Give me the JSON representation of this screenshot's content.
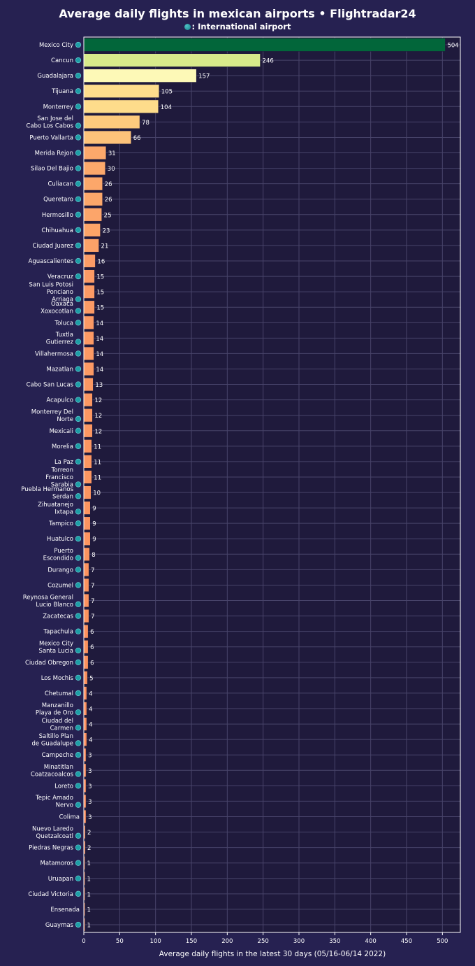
{
  "chart_data": {
    "type": "bar",
    "orientation": "horizontal",
    "title": "Average daily flights in mexican airports • Flightradar24",
    "legend": {
      "label": ": International airport",
      "marker": "globe-icon"
    },
    "xlabel": "Average daily flights in the latest 30 days (05/16-06/14 2022)",
    "xlim": [
      0,
      525
    ],
    "xticks": [
      0,
      50,
      100,
      150,
      200,
      250,
      300,
      350,
      400,
      450,
      500
    ],
    "grid": true,
    "colors": {
      "background": "#262151",
      "plot_background": "#1f1a3c",
      "grid": "#48446a",
      "label_color": "#ffffff",
      "international_marker": "#1e9ea6"
    },
    "bars": [
      {
        "label": "Mexico City",
        "value": 504,
        "international": true,
        "color": "#02663a"
      },
      {
        "label": "Cancun",
        "value": 246,
        "international": true,
        "color": "#d8ea8b"
      },
      {
        "label": "Guadalajara",
        "value": 157,
        "international": true,
        "color": "#fdf9b7"
      },
      {
        "label": "Tijuana",
        "value": 105,
        "international": true,
        "color": "#fedd8c"
      },
      {
        "label": "Monterrey",
        "value": 104,
        "international": true,
        "color": "#fedc8b"
      },
      {
        "label": "San Jose del Cabo Los Cabos",
        "value": 78,
        "international": true,
        "color": "#fdca7d"
      },
      {
        "label": "Puerto Vallarta",
        "value": 66,
        "international": true,
        "color": "#fdc27a"
      },
      {
        "label": "Merida Rejon",
        "value": 31,
        "international": true,
        "color": "#fca86b"
      },
      {
        "label": "Silao Del Bajio",
        "value": 30,
        "international": true,
        "color": "#fca86b"
      },
      {
        "label": "Culiacan",
        "value": 26,
        "international": true,
        "color": "#fca76a"
      },
      {
        "label": "Queretaro",
        "value": 26,
        "international": true,
        "color": "#fca76a"
      },
      {
        "label": "Hermosillo",
        "value": 25,
        "international": true,
        "color": "#fca56a"
      },
      {
        "label": "Chihuahua",
        "value": 23,
        "international": true,
        "color": "#fca468"
      },
      {
        "label": "Ciudad Juarez",
        "value": 21,
        "international": true,
        "color": "#fca268"
      },
      {
        "label": "Aguascalientes",
        "value": 16,
        "international": true,
        "color": "#fc9c66"
      },
      {
        "label": "Veracruz",
        "value": 15,
        "international": true,
        "color": "#fc9a65"
      },
      {
        "label": "San Luis Potosi Ponciano Arriaga",
        "value": 15,
        "international": true,
        "color": "#fc9a65"
      },
      {
        "label": "Oaxaca Xoxocotlan",
        "value": 15,
        "international": true,
        "color": "#fc9a65"
      },
      {
        "label": "Toluca",
        "value": 14,
        "international": true,
        "color": "#fc9964"
      },
      {
        "label": "Tuxtla Gutierrez",
        "value": 14,
        "international": true,
        "color": "#fc9964"
      },
      {
        "label": "Villahermosa",
        "value": 14,
        "international": true,
        "color": "#fc9964"
      },
      {
        "label": "Mazatlan",
        "value": 14,
        "international": true,
        "color": "#fc9964"
      },
      {
        "label": "Cabo San Lucas",
        "value": 13,
        "international": true,
        "color": "#fc9863"
      },
      {
        "label": "Acapulco",
        "value": 12,
        "international": true,
        "color": "#fc9762"
      },
      {
        "label": "Monterrey Del Norte",
        "value": 12,
        "international": true,
        "color": "#fc9762"
      },
      {
        "label": "Mexicali",
        "value": 12,
        "international": true,
        "color": "#fc9762"
      },
      {
        "label": "Morelia",
        "value": 11,
        "international": true,
        "color": "#fc9661"
      },
      {
        "label": "La Paz",
        "value": 11,
        "international": true,
        "color": "#fc9661"
      },
      {
        "label": "Torreon Francisco Sarabia",
        "value": 11,
        "international": true,
        "color": "#fc9661"
      },
      {
        "label": "Puebla Hermanos Serdan",
        "value": 10,
        "international": true,
        "color": "#fc9560"
      },
      {
        "label": "Zihuatanejo Ixtapa",
        "value": 9,
        "international": true,
        "color": "#fc9460"
      },
      {
        "label": "Tampico",
        "value": 9,
        "international": true,
        "color": "#fc9460"
      },
      {
        "label": "Huatulco",
        "value": 9,
        "international": true,
        "color": "#fc9460"
      },
      {
        "label": "Puerto Escondido",
        "value": 8,
        "international": true,
        "color": "#fc935f"
      },
      {
        "label": "Durango",
        "value": 7,
        "international": true,
        "color": "#fc925e"
      },
      {
        "label": "Cozumel",
        "value": 7,
        "international": true,
        "color": "#fc925e"
      },
      {
        "label": "Reynosa General Lucio Blanco",
        "value": 7,
        "international": true,
        "color": "#fc925e"
      },
      {
        "label": "Zacatecas",
        "value": 7,
        "international": true,
        "color": "#fc925e"
      },
      {
        "label": "Tapachula",
        "value": 6,
        "international": true,
        "color": "#fc915d"
      },
      {
        "label": "Mexico City Santa Lucia",
        "value": 6,
        "international": true,
        "color": "#fc915d"
      },
      {
        "label": "Ciudad Obregon",
        "value": 6,
        "international": true,
        "color": "#fc915d"
      },
      {
        "label": "Los Mochis",
        "value": 5,
        "international": true,
        "color": "#fc905c"
      },
      {
        "label": "Chetumal",
        "value": 4,
        "international": true,
        "color": "#fc8f5c"
      },
      {
        "label": "Manzanillo Playa de Oro",
        "value": 4,
        "international": true,
        "color": "#fc8f5c"
      },
      {
        "label": "Ciudad del Carmen",
        "value": 4,
        "international": true,
        "color": "#fc8f5c"
      },
      {
        "label": "Saltillo Plan de Guadalupe",
        "value": 4,
        "international": true,
        "color": "#fc8f5c"
      },
      {
        "label": "Campeche",
        "value": 3,
        "international": true,
        "color": "#fc8e5b"
      },
      {
        "label": "Minatitlan Coatzacoalcos",
        "value": 3,
        "international": true,
        "color": "#fc8e5b"
      },
      {
        "label": "Loreto",
        "value": 3,
        "international": true,
        "color": "#fc8e5b"
      },
      {
        "label": "Tepic Amado Nervo",
        "value": 3,
        "international": true,
        "color": "#fc8e5b"
      },
      {
        "label": "Colima",
        "value": 3,
        "international": false,
        "color": "#fc8e5b"
      },
      {
        "label": "Nuevo Laredo Quetzalcoatl",
        "value": 2,
        "international": true,
        "color": "#fc8d5a"
      },
      {
        "label": "Piedras Negras",
        "value": 2,
        "international": true,
        "color": "#fc8d5a"
      },
      {
        "label": "Matamoros",
        "value": 1,
        "international": true,
        "color": "#fc8c59"
      },
      {
        "label": "Uruapan",
        "value": 1,
        "international": true,
        "color": "#fc8c59"
      },
      {
        "label": "Ciudad Victoria",
        "value": 1,
        "international": true,
        "color": "#fc8c59"
      },
      {
        "label": "Ensenada",
        "value": 1,
        "international": false,
        "color": "#fc8c59"
      },
      {
        "label": "Guaymas",
        "value": 1,
        "international": true,
        "color": "#fc8c59"
      }
    ]
  }
}
